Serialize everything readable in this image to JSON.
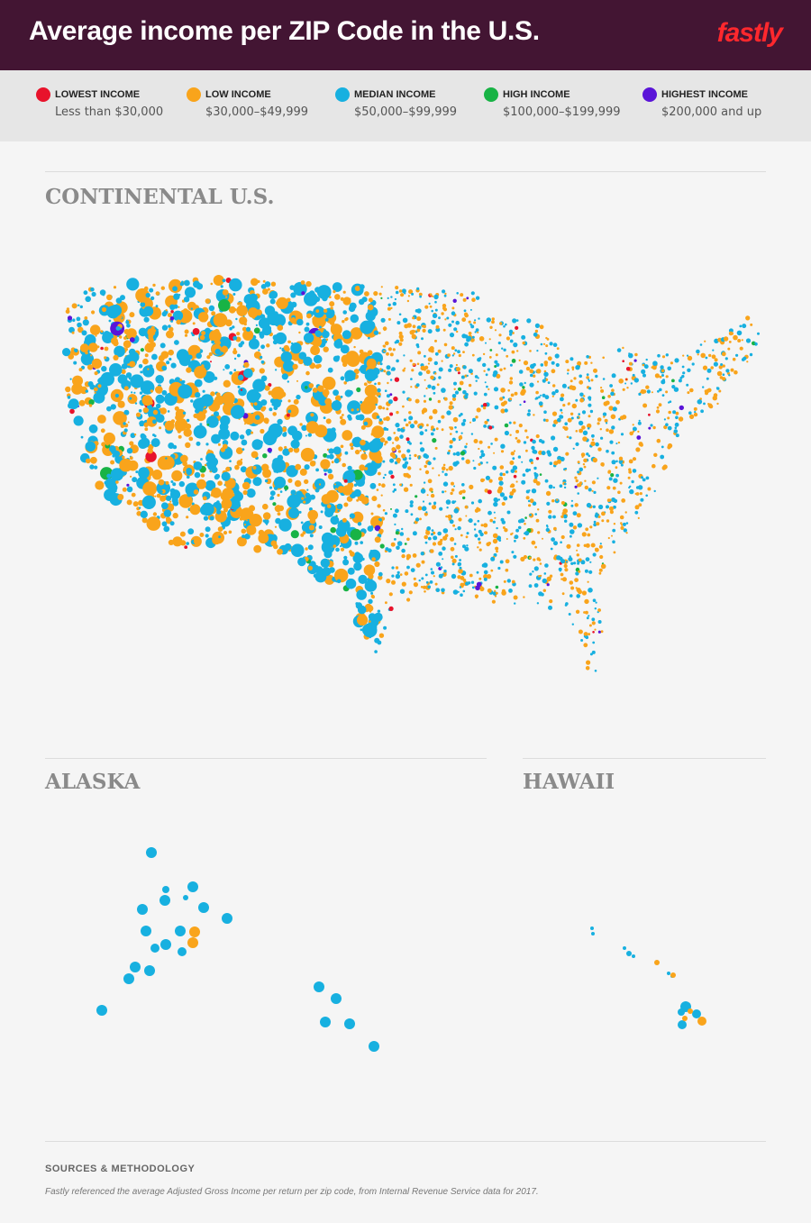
{
  "header": {
    "title": "Average income per ZIP Code in the U.S.",
    "logo": "fastly"
  },
  "legend": {
    "items": [
      {
        "label": "LOWEST INCOME",
        "range": "Less than $30,000",
        "color": "#e8132b"
      },
      {
        "label": "LOW INCOME",
        "range": "$30,000–$49,999",
        "color": "#f9a41b"
      },
      {
        "label": "MEDIAN INCOME",
        "range": "$50,000–$99,999",
        "color": "#17b0e0"
      },
      {
        "label": "HIGH INCOME",
        "range": "$100,000–$199,999",
        "color": "#18b345"
      },
      {
        "label": "HIGHEST INCOME",
        "range": "$200,000 and up",
        "color": "#5a14d8"
      }
    ]
  },
  "sections": [
    {
      "title": "CONTINENTAL U.S."
    },
    {
      "title": "ALASKA"
    },
    {
      "title": "HAWAII"
    }
  ],
  "footer": {
    "heading": "SOURCES & METHODOLOGY",
    "text": "Fastly referenced the average Adjusted Gross Income per return per zip code, from Internal Revenue Service data for 2017."
  }
}
